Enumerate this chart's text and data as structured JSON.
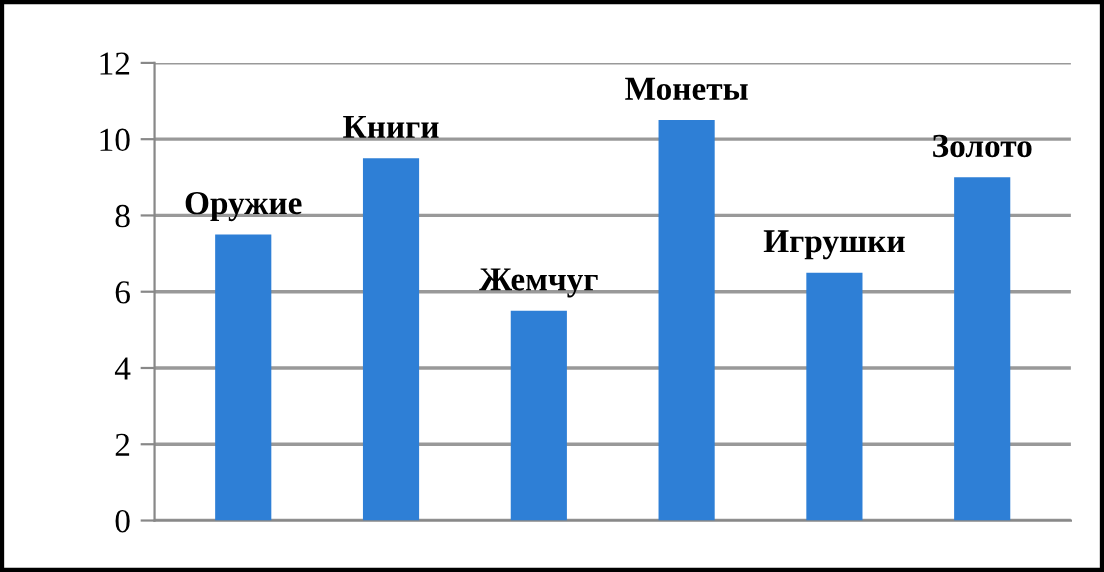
{
  "chart_data": {
    "type": "bar",
    "categories": [
      "Оружие",
      "Книги",
      "Жемчуг",
      "Монеты",
      "Игрушки",
      "Золото"
    ],
    "values": [
      7.5,
      9.5,
      5.5,
      10.5,
      6.5,
      9
    ],
    "color": "#2e7fd6",
    "ylim": [
      0,
      12
    ],
    "yticks": [
      0,
      2,
      4,
      6,
      8,
      10,
      12
    ],
    "grid": "y"
  }
}
